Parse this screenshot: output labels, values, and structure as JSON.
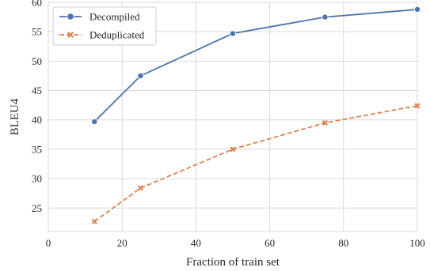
{
  "chart_data": {
    "type": "line",
    "title": "",
    "xlabel": "Fraction of train set",
    "ylabel": "BLEU4",
    "xlim": [
      0,
      100
    ],
    "ylim": [
      21,
      60
    ],
    "xticks": [
      0,
      20,
      40,
      60,
      80,
      100
    ],
    "yticks": [
      25,
      30,
      35,
      40,
      45,
      50,
      55,
      60
    ],
    "grid": true,
    "legend_position": "top-left",
    "series": [
      {
        "name": "Decompiled",
        "x": [
          12.5,
          25,
          50,
          75,
          100
        ],
        "values": [
          39.7,
          47.5,
          54.7,
          57.5,
          58.8
        ],
        "color": "#4c72b0",
        "line_style": "solid",
        "marker": "circle"
      },
      {
        "name": "Deduplicated",
        "x": [
          12.5,
          25,
          50,
          75,
          100
        ],
        "values": [
          22.7,
          28.4,
          35.0,
          39.5,
          42.4
        ],
        "color": "#dd8452",
        "line_style": "dashed",
        "marker": "x"
      }
    ]
  }
}
